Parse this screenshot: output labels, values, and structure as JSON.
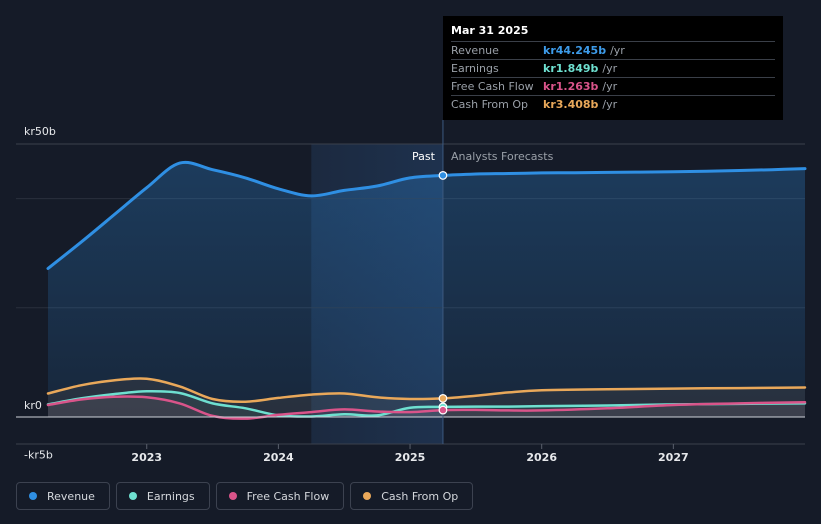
{
  "tooltip": {
    "date": "Mar 31 2025",
    "rows": [
      {
        "label": "Revenue",
        "value": "kr44.245b",
        "unit": "/yr",
        "color": "#3d9be9"
      },
      {
        "label": "Earnings",
        "value": "kr1.849b",
        "unit": "/yr",
        "color": "#6ee0d0"
      },
      {
        "label": "Free Cash Flow",
        "value": "kr1.263b",
        "unit": "/yr",
        "color": "#d9548a"
      },
      {
        "label": "Cash From Op",
        "value": "kr3.408b",
        "unit": "/yr",
        "color": "#e9a85a"
      }
    ]
  },
  "legend": [
    {
      "label": "Revenue",
      "color": "#2f8fe3"
    },
    {
      "label": "Earnings",
      "color": "#6ee0d0"
    },
    {
      "label": "Free Cash Flow",
      "color": "#d9548a"
    },
    {
      "label": "Cash From Op",
      "color": "#e9a85a"
    }
  ],
  "chart_data": {
    "type": "line",
    "y_tick_labels": [
      "kr50b",
      "kr0",
      "-kr5b"
    ],
    "ylim": [
      -5,
      50
    ],
    "xlim": [
      2022.25,
      2028.0
    ],
    "x_tick_labels": [
      "2023",
      "2024",
      "2025",
      "2026",
      "2027"
    ],
    "x_ticks": [
      2023,
      2024,
      2025,
      2026,
      2027
    ],
    "past_label": "Past",
    "forecast_label": "Analysts Forecasts",
    "divider_x": 2025.25,
    "shade_start_x": 2024.25,
    "grid": true,
    "series": [
      {
        "name": "Revenue",
        "color": "#2f8fe3",
        "area": true,
        "x": [
          2022.25,
          2022.5,
          2022.75,
          2023.0,
          2023.25,
          2023.5,
          2023.75,
          2024.0,
          2024.25,
          2024.5,
          2024.75,
          2025.0,
          2025.25,
          2025.5,
          2025.75,
          2026.0,
          2026.25,
          2026.5,
          2026.75,
          2027.0,
          2027.25,
          2027.5,
          2027.75,
          2028.0
        ],
        "y": [
          27.2,
          32.0,
          37.0,
          42.0,
          46.5,
          45.3,
          43.8,
          41.8,
          40.5,
          41.5,
          42.3,
          43.8,
          44.245,
          44.5,
          44.6,
          44.7,
          44.75,
          44.8,
          44.85,
          44.9,
          45.0,
          45.15,
          45.3,
          45.5
        ]
      },
      {
        "name": "Earnings",
        "color": "#6ee0d0",
        "x": [
          2022.25,
          2022.5,
          2022.75,
          2023.0,
          2023.25,
          2023.5,
          2023.75,
          2024.0,
          2024.25,
          2024.5,
          2024.75,
          2025.0,
          2025.25,
          2025.5,
          2025.75,
          2026.0,
          2026.5,
          2027.0,
          2027.5,
          2028.0
        ],
        "y": [
          2.3,
          3.4,
          4.2,
          4.7,
          4.4,
          2.5,
          1.6,
          0.3,
          0.1,
          0.5,
          0.3,
          1.7,
          1.849,
          1.9,
          1.9,
          2.0,
          2.1,
          2.3,
          2.4,
          2.5
        ]
      },
      {
        "name": "Free Cash Flow",
        "color": "#d9548a",
        "x": [
          2022.25,
          2022.5,
          2022.75,
          2023.0,
          2023.25,
          2023.5,
          2023.75,
          2024.0,
          2024.25,
          2024.5,
          2024.75,
          2025.0,
          2025.25,
          2025.5,
          2025.75,
          2026.0,
          2026.5,
          2027.0,
          2027.5,
          2028.0
        ],
        "y": [
          2.2,
          3.2,
          3.7,
          3.6,
          2.5,
          0.2,
          -0.3,
          0.4,
          0.9,
          1.4,
          1.0,
          0.9,
          1.263,
          1.3,
          1.2,
          1.2,
          1.6,
          2.2,
          2.5,
          2.7
        ]
      },
      {
        "name": "Cash From Op",
        "color": "#e9a85a",
        "x": [
          2022.25,
          2022.5,
          2022.75,
          2023.0,
          2023.25,
          2023.5,
          2023.75,
          2024.0,
          2024.25,
          2024.5,
          2024.75,
          2025.0,
          2025.25,
          2025.5,
          2025.75,
          2026.0,
          2026.5,
          2027.0,
          2027.5,
          2028.0
        ],
        "y": [
          4.3,
          5.8,
          6.7,
          7.0,
          5.6,
          3.3,
          2.8,
          3.5,
          4.1,
          4.3,
          3.6,
          3.3,
          3.408,
          3.9,
          4.5,
          4.9,
          5.1,
          5.2,
          5.3,
          5.4
        ]
      }
    ]
  }
}
